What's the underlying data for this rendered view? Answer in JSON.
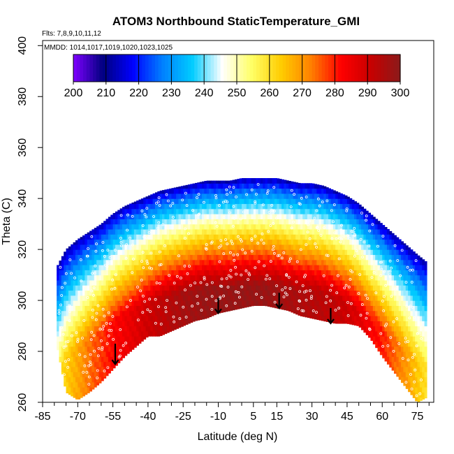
{
  "chart_data": {
    "type": "heatmap",
    "title": "ATOM3 Northbound StaticTemperature_GMI",
    "flights_label": "Flts: 7,8,9,10,11,12",
    "dates_label": "MMDD: 1014,1017,1019,1020,1023,1025",
    "xlabel": "Latitude (deg N)",
    "ylabel": "Theta (C)",
    "xlim": [
      -85,
      82
    ],
    "ylim": [
      260,
      402
    ],
    "x_ticks": [
      -85,
      -70,
      -55,
      -40,
      -25,
      -10,
      5,
      15,
      30,
      45,
      60,
      75
    ],
    "x_minor_ticks": [
      -80,
      -75,
      -65,
      -60,
      -50,
      -45,
      -35,
      -30,
      -20,
      -15,
      -5,
      0,
      10,
      20,
      25,
      35,
      40,
      50,
      55,
      65,
      70,
      80
    ],
    "y_ticks": [
      260,
      280,
      300,
      320,
      340,
      360,
      380,
      400
    ],
    "colorbar": {
      "min": 200,
      "max": 300,
      "ticks": [
        200,
        210,
        220,
        230,
        240,
        250,
        260,
        270,
        280,
        290,
        300
      ],
      "colors": [
        "#7f00ff",
        "#00007f",
        "#0000ff",
        "#0080ff",
        "#00ccff",
        "#ffffff",
        "#ffff66",
        "#ffcc00",
        "#ff8000",
        "#ff0000",
        "#c80000",
        "#8b1a1a"
      ],
      "placement": "top-inside"
    },
    "field": {
      "latitudes": [
        -79,
        -75,
        -70,
        -65,
        -60,
        -55,
        -50,
        -45,
        -40,
        -35,
        -30,
        -25,
        -20,
        -15,
        -10,
        -5,
        0,
        5,
        10,
        15,
        20,
        25,
        30,
        35,
        40,
        45,
        50,
        55,
        60,
        65,
        70,
        75,
        79
      ],
      "theta_top": [
        313,
        320,
        324,
        327,
        330,
        334,
        337,
        339,
        341,
        343,
        344,
        345,
        346,
        347,
        347,
        347,
        348,
        348,
        348,
        348,
        347,
        346,
        346,
        345,
        343,
        341,
        338,
        334,
        330,
        326,
        322,
        318,
        315
      ],
      "theta_bottom": [
        283,
        264,
        261,
        264,
        268,
        273,
        278,
        282,
        286,
        286,
        288,
        290,
        292,
        293,
        295,
        296,
        297,
        298,
        298,
        297,
        296,
        294,
        293,
        292,
        291,
        291,
        290,
        285,
        278,
        272,
        266,
        260,
        262
      ],
      "warm_core_temperature_K": [
        258,
        263,
        268,
        274,
        278,
        282,
        284,
        287,
        290,
        292,
        294,
        296,
        297,
        298,
        298,
        298,
        298,
        298,
        298,
        297,
        296,
        295,
        294,
        293,
        292,
        290,
        287,
        283,
        280,
        275,
        270,
        264,
        260
      ],
      "top_temperature_K": 212,
      "description": "temperature increases with depth below top edge; warmest (~298 K) near equator at theta ~300"
    },
    "arrows": [
      {
        "lat": -54,
        "theta_start": 283,
        "theta_end": 275
      },
      {
        "lat": -10,
        "theta_start": 301,
        "theta_end": 295
      },
      {
        "lat": 16,
        "theta_start": 303,
        "theta_end": 297
      },
      {
        "lat": 38,
        "theta_start": 297,
        "theta_end": 291
      }
    ]
  }
}
